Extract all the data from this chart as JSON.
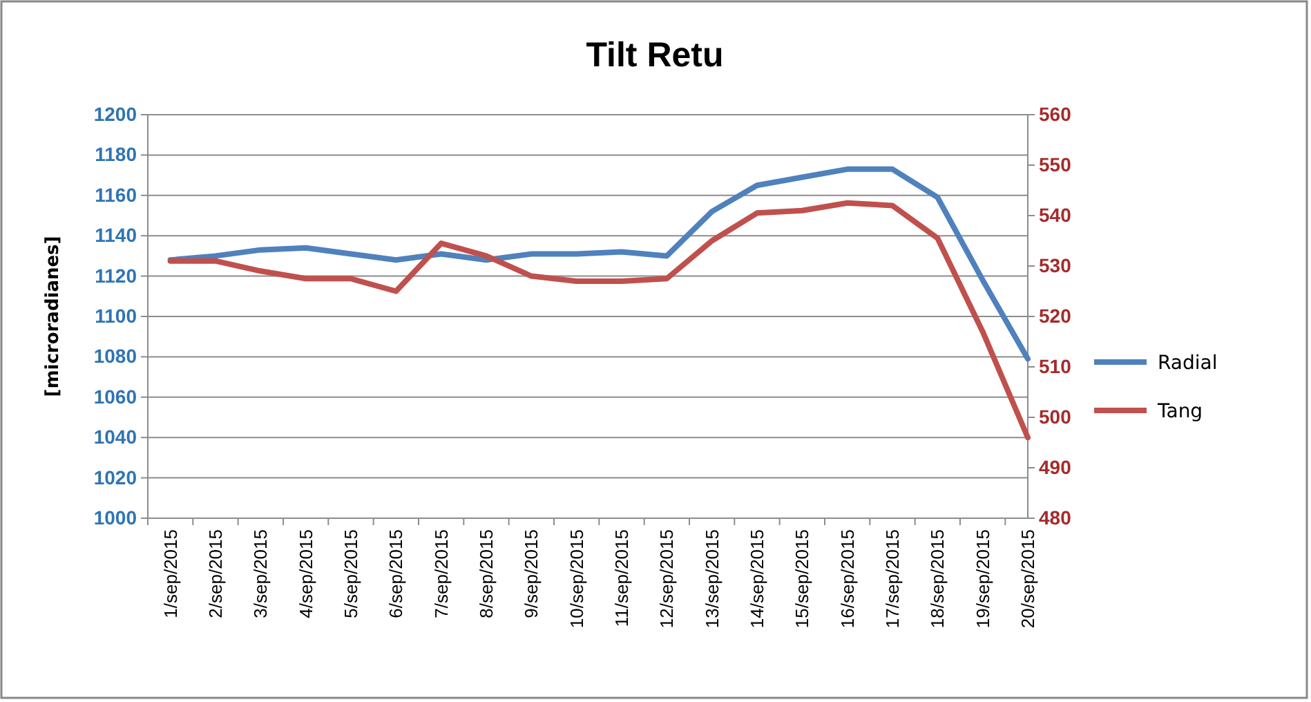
{
  "chart_data": {
    "type": "line",
    "title": "Tilt Retu",
    "ylabel": "[microradianes]",
    "categories": [
      "1/sep/2015",
      "2/sep/2015",
      "3/sep/2015",
      "4/sep/2015",
      "5/sep/2015",
      "6/sep/2015",
      "7/sep/2015",
      "8/sep/2015",
      "9/sep/2015",
      "10/sep/2015",
      "11/sep/2015",
      "12/sep/2015",
      "13/sep/2015",
      "14/sep/2015",
      "15/sep/2015",
      "16/sep/2015",
      "17/sep/2015",
      "18/sep/2015",
      "19/sep/2015",
      "20/sep/2015"
    ],
    "series": [
      {
        "name": "Radial",
        "color": "#4f81bd",
        "values": [
          1128,
          1130,
          1133,
          1134,
          1131,
          1128,
          1131,
          1128,
          1131,
          1131,
          1132,
          1130,
          1152,
          1165,
          1169,
          1173,
          1173,
          1159,
          1118,
          1079
        ]
      },
      {
        "name": "Tang",
        "color": "#c0504d",
        "axis": "y2",
        "values": [
          531,
          531,
          529,
          527.5,
          527.5,
          525,
          534.5,
          532,
          528,
          527,
          527,
          527.5,
          535,
          540.5,
          541,
          542.5,
          542,
          535.5,
          517,
          496
        ]
      }
    ],
    "ylim": [
      1000,
      1200
    ],
    "yticks": [
      1000,
      1020,
      1040,
      1060,
      1080,
      1100,
      1120,
      1140,
      1160,
      1180,
      1200
    ],
    "y2lim": [
      480,
      560
    ],
    "y2ticks": [
      480,
      490,
      500,
      510,
      520,
      530,
      540,
      550,
      560
    ],
    "grid": "y",
    "legend": "right",
    "marker": "none",
    "line_style": "solid"
  }
}
